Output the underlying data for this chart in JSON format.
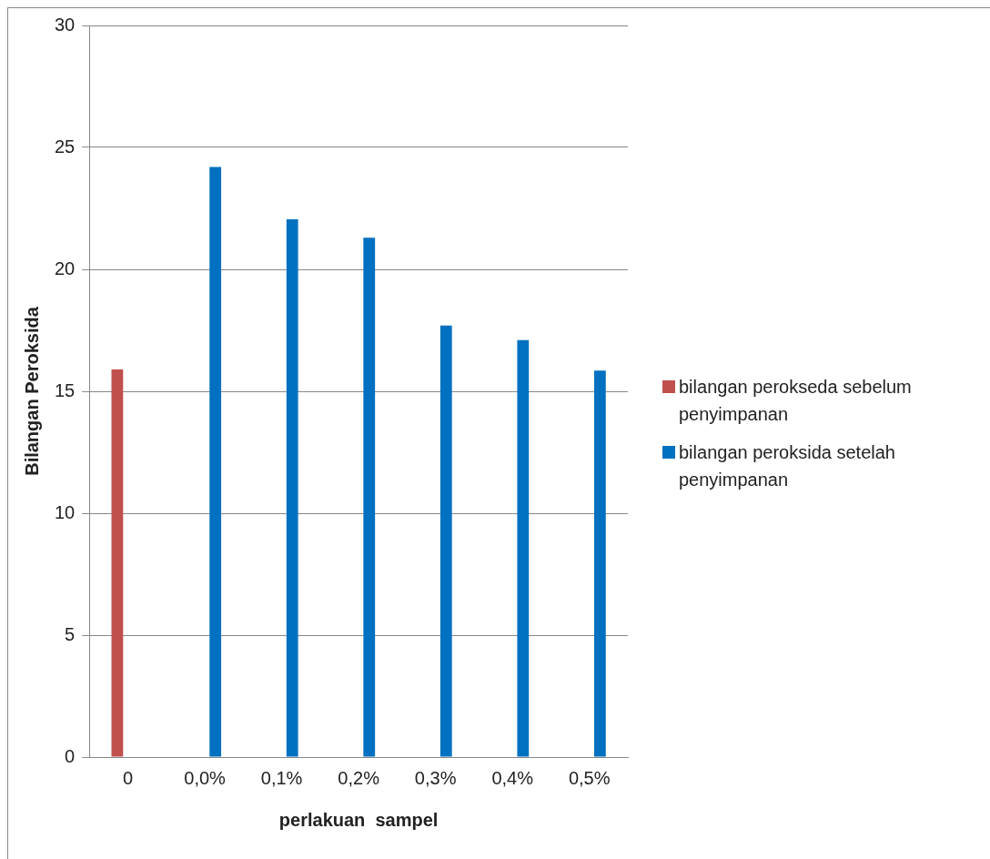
{
  "chart_data": {
    "type": "bar",
    "xlabel": "perlakuan  sampel",
    "ylabel": "Bilangan Peroksida",
    "categories": [
      "0",
      "0,0%",
      "0,1%",
      "0,2%",
      "0,3%",
      "0,4%",
      "0,5%"
    ],
    "series": [
      {
        "name": "bilangan perokseda sebelum penyimpanan",
        "color": "#c0504d",
        "values": [
          15.9,
          null,
          null,
          null,
          null,
          null,
          null
        ]
      },
      {
        "name": "bilangan peroksida setelah penyimpanan",
        "color": "#0070c0",
        "values": [
          null,
          24.2,
          22.05,
          21.3,
          17.7,
          17.1,
          15.85
        ]
      }
    ],
    "ylim": [
      0,
      30
    ],
    "yticks": [
      0,
      5,
      10,
      15,
      20,
      25,
      30
    ],
    "grid": "y",
    "legend": "right"
  }
}
